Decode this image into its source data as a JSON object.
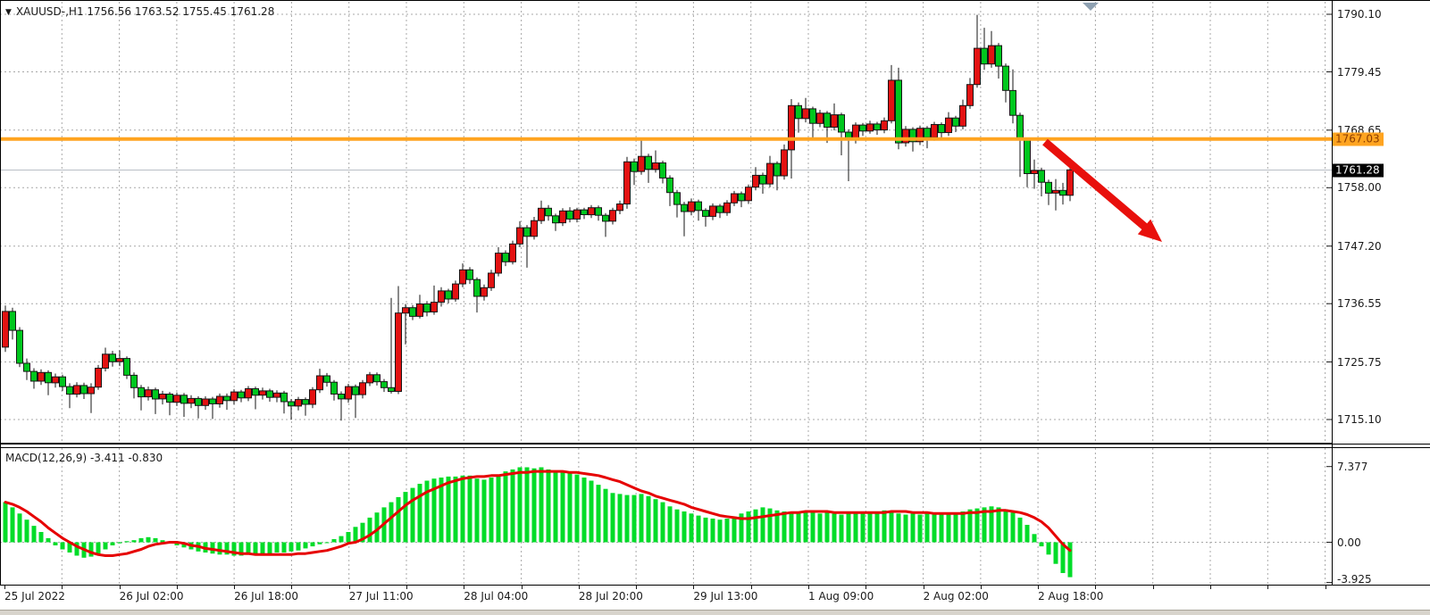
{
  "window": {
    "title": "XAUUSD-,H1  1756.56 1763.52 1755.45 1761.28"
  },
  "icons": {
    "dropdown": "▼"
  },
  "indicator": {
    "label": "MACD(12,26,9) -3.411 -0.830"
  },
  "price_axis": {
    "ticks": [
      "1790.10",
      "1779.45",
      "1768.65",
      "1758.00",
      "1747.20",
      "1736.55",
      "1725.75",
      "1715.10"
    ],
    "orange_badge": "1767.03",
    "current_badge": "1761.28"
  },
  "time_axis": {
    "labels": [
      "25 Jul 2022",
      "26 Jul 02:00",
      "26 Jul 18:00",
      "27 Jul 11:00",
      "28 Jul 04:00",
      "28 Jul 20:00",
      "29 Jul 13:00",
      "1 Aug 09:00",
      "2 Aug 02:00",
      "2 Aug 18:00"
    ]
  },
  "macd_axis": {
    "ticks": [
      "7.377",
      "0.00",
      "-3.925"
    ]
  },
  "colors": {
    "bull": "#e31212",
    "bear": "#00c71e",
    "candle_outline": "#161616",
    "hist": "#00dc28",
    "signal": "#e60000",
    "orange_line": "#ffa420",
    "orange_badge_text": "#8b3c00",
    "current_line": "#b9bec6",
    "grid": "#a8a8a8",
    "arrow": "#e8100c",
    "badge_black_bg": "#000000",
    "badge_black_text": "#ffffff",
    "marker": "#8fa1b2"
  },
  "chart_data": {
    "type": "candlestick",
    "symbol": "XAUUSD-",
    "timeframe": "H1",
    "title": "XAUUSD-,H1",
    "last_bar": {
      "open": 1756.56,
      "high": 1763.52,
      "low": 1755.45,
      "close": 1761.28
    },
    "horizontal_line_price": 1767.03,
    "current_price": 1761.28,
    "price_axis_range": [
      1715.1,
      1790.1
    ],
    "price_ticks": [
      1790.1,
      1779.45,
      1768.65,
      1758.0,
      1747.2,
      1736.55,
      1725.75,
      1715.1
    ],
    "time_labels": [
      "25 Jul 2022",
      "26 Jul 02:00",
      "26 Jul 18:00",
      "27 Jul 11:00",
      "28 Jul 04:00",
      "28 Jul 20:00",
      "29 Jul 13:00",
      "1 Aug 09:00",
      "2 Aug 02:00",
      "2 Aug 18:00"
    ],
    "candles": [
      [
        1728.5,
        1736.2,
        1727.6,
        1735.1
      ],
      [
        1735.1,
        1735.8,
        1729.9,
        1731.6
      ],
      [
        1731.6,
        1732.2,
        1724.8,
        1725.5
      ],
      [
        1725.5,
        1726.4,
        1722.4,
        1724.0
      ],
      [
        1724.0,
        1724.6,
        1720.8,
        1722.2
      ],
      [
        1722.2,
        1724.4,
        1721.5,
        1723.8
      ],
      [
        1723.8,
        1724.2,
        1719.6,
        1721.9
      ],
      [
        1721.9,
        1723.6,
        1721.0,
        1723.0
      ],
      [
        1723.0,
        1723.4,
        1720.4,
        1721.2
      ],
      [
        1721.2,
        1721.8,
        1717.2,
        1719.8
      ],
      [
        1719.8,
        1722.0,
        1719.2,
        1721.4
      ],
      [
        1721.4,
        1721.9,
        1718.9,
        1719.9
      ],
      [
        1719.9,
        1721.8,
        1716.3,
        1721.1
      ],
      [
        1721.1,
        1725.2,
        1720.6,
        1724.6
      ],
      [
        1724.6,
        1728.4,
        1724.0,
        1727.2
      ],
      [
        1727.2,
        1727.8,
        1724.9,
        1725.8
      ],
      [
        1725.8,
        1727.9,
        1725.0,
        1726.4
      ],
      [
        1726.4,
        1726.8,
        1722.6,
        1723.3
      ],
      [
        1723.3,
        1723.8,
        1719.0,
        1721.0
      ],
      [
        1721.0,
        1721.5,
        1716.8,
        1719.3
      ],
      [
        1719.3,
        1721.2,
        1718.6,
        1720.6
      ],
      [
        1720.6,
        1721.0,
        1716.1,
        1718.9
      ],
      [
        1718.9,
        1720.4,
        1717.9,
        1719.8
      ],
      [
        1719.8,
        1720.2,
        1715.9,
        1718.3
      ],
      [
        1718.3,
        1720.1,
        1717.6,
        1719.6
      ],
      [
        1719.6,
        1720.0,
        1715.6,
        1718.1
      ],
      [
        1718.1,
        1719.6,
        1717.2,
        1719.0
      ],
      [
        1719.0,
        1719.4,
        1715.3,
        1717.7
      ],
      [
        1717.7,
        1719.4,
        1716.9,
        1718.9
      ],
      [
        1718.9,
        1719.3,
        1715.2,
        1718.0
      ],
      [
        1718.0,
        1719.9,
        1717.3,
        1719.4
      ],
      [
        1719.4,
        1719.9,
        1716.9,
        1718.6
      ],
      [
        1718.6,
        1720.7,
        1717.9,
        1720.2
      ],
      [
        1720.2,
        1720.6,
        1718.3,
        1719.1
      ],
      [
        1719.1,
        1721.3,
        1718.5,
        1720.8
      ],
      [
        1720.8,
        1721.2,
        1717.0,
        1719.6
      ],
      [
        1719.6,
        1721.0,
        1718.8,
        1720.4
      ],
      [
        1720.4,
        1720.8,
        1718.4,
        1719.2
      ],
      [
        1719.2,
        1720.5,
        1718.3,
        1720.0
      ],
      [
        1720.0,
        1720.4,
        1716.2,
        1718.4
      ],
      [
        1718.4,
        1718.9,
        1715.1,
        1717.6
      ],
      [
        1717.6,
        1719.3,
        1716.8,
        1718.8
      ],
      [
        1718.8,
        1719.2,
        1715.8,
        1717.9
      ],
      [
        1717.9,
        1721.1,
        1717.2,
        1720.6
      ],
      [
        1720.6,
        1724.5,
        1720.0,
        1723.2
      ],
      [
        1723.2,
        1723.7,
        1721.2,
        1722.0
      ],
      [
        1722.0,
        1722.4,
        1718.6,
        1719.8
      ],
      [
        1719.8,
        1720.3,
        1714.9,
        1718.9
      ],
      [
        1718.9,
        1721.7,
        1718.2,
        1721.2
      ],
      [
        1721.2,
        1721.6,
        1715.4,
        1719.7
      ],
      [
        1719.7,
        1722.4,
        1719.0,
        1721.9
      ],
      [
        1721.9,
        1723.9,
        1721.3,
        1723.4
      ],
      [
        1723.4,
        1723.8,
        1721.4,
        1722.1
      ],
      [
        1722.1,
        1722.6,
        1720.2,
        1721.0
      ],
      [
        1721.0,
        1737.6,
        1719.9,
        1720.3
      ],
      [
        1720.3,
        1739.8,
        1719.8,
        1734.8
      ],
      [
        1734.8,
        1736.5,
        1729.0,
        1735.8
      ],
      [
        1735.8,
        1736.3,
        1733.5,
        1734.2
      ],
      [
        1734.2,
        1738.2,
        1733.8,
        1736.5
      ],
      [
        1736.5,
        1737.0,
        1734.2,
        1735.0
      ],
      [
        1735.0,
        1739.9,
        1734.5,
        1736.8
      ],
      [
        1736.8,
        1739.6,
        1736.0,
        1738.9
      ],
      [
        1738.9,
        1739.3,
        1736.6,
        1737.4
      ],
      [
        1737.4,
        1740.8,
        1736.9,
        1740.2
      ],
      [
        1740.2,
        1744.0,
        1739.6,
        1742.8
      ],
      [
        1742.8,
        1743.3,
        1740.2,
        1741.0
      ],
      [
        1741.0,
        1741.4,
        1734.9,
        1737.9
      ],
      [
        1737.9,
        1740.1,
        1737.1,
        1739.5
      ],
      [
        1739.5,
        1742.8,
        1738.9,
        1742.2
      ],
      [
        1742.2,
        1747.0,
        1741.6,
        1745.9
      ],
      [
        1745.9,
        1746.4,
        1743.5,
        1744.3
      ],
      [
        1744.3,
        1748.2,
        1743.8,
        1747.6
      ],
      [
        1747.6,
        1751.8,
        1747.0,
        1750.6
      ],
      [
        1750.6,
        1751.1,
        1743.2,
        1749.0
      ],
      [
        1749.0,
        1752.6,
        1748.4,
        1751.9
      ],
      [
        1751.9,
        1755.6,
        1751.3,
        1754.2
      ],
      [
        1754.2,
        1754.8,
        1751.9,
        1752.8
      ],
      [
        1752.8,
        1753.2,
        1750.0,
        1751.5
      ],
      [
        1751.5,
        1754.2,
        1750.9,
        1753.7
      ],
      [
        1753.7,
        1754.4,
        1751.6,
        1752.2
      ],
      [
        1752.2,
        1754.3,
        1751.6,
        1753.9
      ],
      [
        1753.9,
        1754.3,
        1752.2,
        1753.0
      ],
      [
        1753.0,
        1754.8,
        1752.4,
        1754.3
      ],
      [
        1754.3,
        1754.7,
        1751.9,
        1752.9
      ],
      [
        1752.9,
        1753.3,
        1748.9,
        1751.8
      ],
      [
        1751.8,
        1754.3,
        1751.2,
        1753.8
      ],
      [
        1753.8,
        1755.6,
        1753.1,
        1755.0
      ],
      [
        1755.0,
        1763.7,
        1754.1,
        1762.8
      ],
      [
        1762.8,
        1763.4,
        1758.5,
        1761.0
      ],
      [
        1761.0,
        1767.2,
        1760.4,
        1763.8
      ],
      [
        1763.8,
        1764.3,
        1758.9,
        1761.4
      ],
      [
        1761.4,
        1764.9,
        1760.8,
        1762.6
      ],
      [
        1762.6,
        1763.0,
        1758.8,
        1759.8
      ],
      [
        1759.8,
        1760.3,
        1754.6,
        1757.1
      ],
      [
        1757.1,
        1757.6,
        1752.5,
        1754.9
      ],
      [
        1754.9,
        1755.4,
        1749.0,
        1753.6
      ],
      [
        1753.6,
        1756.0,
        1752.9,
        1755.4
      ],
      [
        1755.4,
        1755.8,
        1751.9,
        1753.8
      ],
      [
        1753.8,
        1754.2,
        1750.8,
        1752.7
      ],
      [
        1752.7,
        1755.1,
        1752.0,
        1754.6
      ],
      [
        1754.6,
        1755.0,
        1752.4,
        1753.4
      ],
      [
        1753.4,
        1755.7,
        1752.8,
        1755.2
      ],
      [
        1755.2,
        1757.4,
        1754.6,
        1756.9
      ],
      [
        1756.9,
        1757.3,
        1754.4,
        1755.6
      ],
      [
        1755.6,
        1758.6,
        1755.0,
        1758.1
      ],
      [
        1758.1,
        1761.8,
        1757.5,
        1760.3
      ],
      [
        1760.3,
        1760.8,
        1756.9,
        1758.7
      ],
      [
        1758.7,
        1763.9,
        1758.1,
        1762.5
      ],
      [
        1762.5,
        1762.9,
        1757.5,
        1760.2
      ],
      [
        1760.2,
        1766.0,
        1759.5,
        1765.0
      ],
      [
        1765.0,
        1774.4,
        1759.7,
        1773.2
      ],
      [
        1773.2,
        1773.8,
        1768.2,
        1770.8
      ],
      [
        1770.8,
        1774.6,
        1770.1,
        1772.6
      ],
      [
        1772.6,
        1773.0,
        1766.8,
        1769.9
      ],
      [
        1769.9,
        1772.4,
        1769.2,
        1771.8
      ],
      [
        1771.8,
        1772.2,
        1766.3,
        1769.2
      ],
      [
        1769.2,
        1773.6,
        1768.6,
        1771.5
      ],
      [
        1771.5,
        1771.9,
        1764.0,
        1768.3
      ],
      [
        1768.3,
        1768.8,
        1759.2,
        1766.9
      ],
      [
        1766.9,
        1770.1,
        1766.2,
        1769.6
      ],
      [
        1769.6,
        1770.0,
        1767.6,
        1768.5
      ],
      [
        1768.5,
        1770.4,
        1768.0,
        1769.8
      ],
      [
        1769.8,
        1770.2,
        1767.8,
        1768.7
      ],
      [
        1768.7,
        1771.0,
        1768.1,
        1770.4
      ],
      [
        1770.4,
        1780.7,
        1769.9,
        1777.9
      ],
      [
        1777.9,
        1780.2,
        1765.1,
        1766.3
      ],
      [
        1766.3,
        1769.4,
        1765.6,
        1768.8
      ],
      [
        1768.8,
        1769.2,
        1764.7,
        1766.5
      ],
      [
        1766.5,
        1769.5,
        1765.9,
        1769.0
      ],
      [
        1769.0,
        1769.4,
        1765.3,
        1767.3
      ],
      [
        1767.3,
        1770.2,
        1766.7,
        1769.7
      ],
      [
        1769.7,
        1770.1,
        1766.9,
        1768.2
      ],
      [
        1768.2,
        1772.0,
        1767.6,
        1770.9
      ],
      [
        1770.9,
        1771.3,
        1768.3,
        1769.4
      ],
      [
        1769.4,
        1774.3,
        1768.8,
        1773.2
      ],
      [
        1773.2,
        1778.3,
        1772.6,
        1777.1
      ],
      [
        1777.1,
        1790.0,
        1776.5,
        1783.8
      ],
      [
        1783.8,
        1787.6,
        1779.8,
        1780.9
      ],
      [
        1780.9,
        1787.0,
        1780.2,
        1784.3
      ],
      [
        1784.3,
        1784.8,
        1778.2,
        1780.5
      ],
      [
        1780.5,
        1781.0,
        1773.8,
        1776.0
      ],
      [
        1776.0,
        1779.9,
        1769.9,
        1771.4
      ],
      [
        1771.4,
        1771.9,
        1760.0,
        1766.8
      ],
      [
        1766.8,
        1767.3,
        1758.1,
        1760.6
      ],
      [
        1760.6,
        1763.2,
        1757.8,
        1761.2
      ],
      [
        1761.2,
        1761.7,
        1756.4,
        1759.0
      ],
      [
        1759.0,
        1759.5,
        1754.8,
        1757.0
      ],
      [
        1757.0,
        1759.6,
        1753.8,
        1757.5
      ],
      [
        1757.5,
        1758.9,
        1754.9,
        1756.6
      ],
      [
        1756.6,
        1763.5,
        1755.5,
        1761.3
      ]
    ],
    "indicator": {
      "name": "MACD(12,26,9)",
      "macd_value": -3.411,
      "signal_value": -0.83,
      "axis_range": [
        -3.925,
        7.377
      ],
      "histogram": [
        3.9,
        3.4,
        2.8,
        2.2,
        1.6,
        1.0,
        0.4,
        -0.3,
        -0.7,
        -1.0,
        -1.3,
        -1.5,
        -1.4,
        -1.1,
        -0.7,
        -0.3,
        -0.1,
        0.1,
        0.2,
        0.4,
        0.5,
        0.4,
        0.2,
        -0.1,
        -0.3,
        -0.5,
        -0.7,
        -0.9,
        -1.0,
        -1.1,
        -1.2,
        -1.2,
        -1.3,
        -1.3,
        -1.2,
        -1.2,
        -1.1,
        -1.1,
        -1.0,
        -1.0,
        -0.9,
        -0.8,
        -0.6,
        -0.4,
        -0.2,
        0.0,
        0.3,
        0.6,
        1.0,
        1.5,
        1.9,
        2.4,
        2.9,
        3.4,
        3.9,
        4.4,
        4.9,
        5.3,
        5.7,
        6.0,
        6.2,
        6.3,
        6.4,
        6.4,
        6.5,
        6.5,
        6.2,
        6.1,
        6.3,
        6.6,
        6.9,
        7.1,
        7.3,
        7.3,
        7.2,
        7.3,
        7.1,
        7.0,
        6.9,
        6.8,
        6.6,
        6.3,
        6.0,
        5.6,
        5.2,
        4.8,
        4.7,
        4.6,
        4.6,
        4.7,
        4.5,
        4.2,
        3.9,
        3.5,
        3.2,
        3.0,
        2.8,
        2.6,
        2.4,
        2.3,
        2.2,
        2.3,
        2.5,
        2.8,
        3.0,
        3.2,
        3.4,
        3.3,
        3.1,
        3.0,
        2.9,
        2.9,
        3.0,
        2.9,
        2.8,
        2.9,
        2.8,
        2.7,
        2.8,
        2.9,
        3.0,
        2.9,
        2.9,
        3.1,
        3.0,
        2.8,
        2.7,
        2.8,
        2.7,
        2.8,
        2.7,
        2.8,
        2.7,
        2.9,
        3.0,
        3.2,
        3.3,
        3.4,
        3.5,
        3.4,
        3.2,
        2.9,
        2.4,
        1.7,
        0.8,
        -0.4,
        -1.2,
        -2.1,
        -3.0,
        -3.4
      ],
      "signal": [
        3.9,
        3.7,
        3.4,
        3.0,
        2.5,
        2.0,
        1.4,
        0.9,
        0.4,
        0.0,
        -0.4,
        -0.7,
        -1.0,
        -1.2,
        -1.3,
        -1.3,
        -1.2,
        -1.1,
        -0.9,
        -0.7,
        -0.4,
        -0.2,
        -0.1,
        0.0,
        0.0,
        -0.1,
        -0.3,
        -0.4,
        -0.6,
        -0.7,
        -0.8,
        -0.9,
        -1.0,
        -1.1,
        -1.1,
        -1.2,
        -1.2,
        -1.2,
        -1.2,
        -1.2,
        -1.2,
        -1.1,
        -1.1,
        -1.0,
        -0.9,
        -0.8,
        -0.6,
        -0.4,
        -0.1,
        0.0,
        0.3,
        0.7,
        1.2,
        1.8,
        2.4,
        3.0,
        3.6,
        4.1,
        4.5,
        4.9,
        5.2,
        5.5,
        5.8,
        6.0,
        6.2,
        6.3,
        6.4,
        6.4,
        6.5,
        6.5,
        6.6,
        6.7,
        6.8,
        6.8,
        6.9,
        6.9,
        6.9,
        6.9,
        6.9,
        6.8,
        6.8,
        6.7,
        6.6,
        6.5,
        6.3,
        6.1,
        5.9,
        5.6,
        5.3,
        5.0,
        4.8,
        4.5,
        4.3,
        4.1,
        3.9,
        3.7,
        3.4,
        3.2,
        3.0,
        2.8,
        2.6,
        2.5,
        2.4,
        2.3,
        2.3,
        2.4,
        2.5,
        2.6,
        2.7,
        2.8,
        2.9,
        2.9,
        3.0,
        3.0,
        3.0,
        3.0,
        2.9,
        2.9,
        2.9,
        2.9,
        2.9,
        2.9,
        2.9,
        2.9,
        3.0,
        3.0,
        3.0,
        2.9,
        2.9,
        2.9,
        2.8,
        2.8,
        2.8,
        2.8,
        2.8,
        2.9,
        2.9,
        3.0,
        3.0,
        3.1,
        3.1,
        3.0,
        2.9,
        2.7,
        2.4,
        2.0,
        1.4,
        0.6,
        -0.2,
        -0.8
      ],
      "macd_axis_ticks": [
        7.377,
        0.0,
        -3.925
      ]
    },
    "annotations": [
      {
        "type": "hline",
        "price": 1767.03,
        "color": "orange",
        "label": "1767.03"
      },
      {
        "type": "hline",
        "price": 1761.28,
        "color": "gray",
        "label": "1761.28"
      },
      {
        "type": "arrow",
        "direction": "down-right",
        "color": "red"
      }
    ]
  }
}
